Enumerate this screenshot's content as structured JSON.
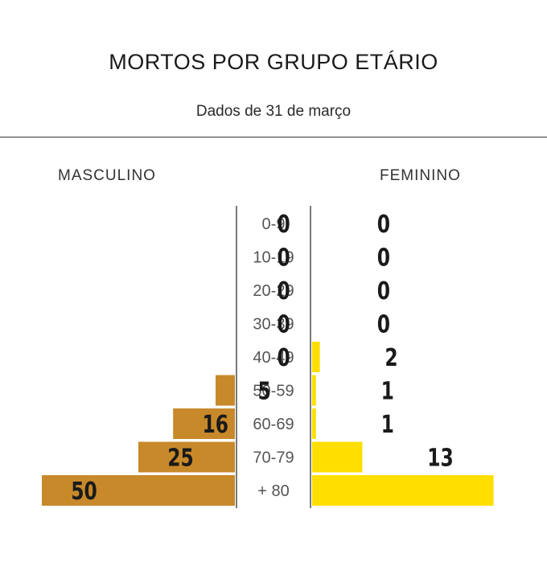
{
  "title": "MORTOS POR GRUPO ETÁRIO",
  "subtitle": "Dados de 31 de março",
  "left_label": "MASCULINO",
  "right_label": "FEMININO",
  "colors": {
    "male": "#C8892A",
    "female": "#FFDE00",
    "axis": "#333333",
    "text": "#1a1a1a"
  },
  "chart_data": {
    "type": "bar",
    "categories": [
      "0-9",
      "10-19",
      "20-29",
      "30-39",
      "40-49",
      "50-59",
      "60-69",
      "70-79",
      "+ 80"
    ],
    "series": [
      {
        "name": "MASCULINO",
        "values": [
          0,
          0,
          0,
          0,
          0,
          5,
          16,
          25,
          50
        ]
      },
      {
        "name": "FEMININO",
        "values": [
          0,
          0,
          0,
          0,
          2,
          1,
          1,
          13,
          47
        ]
      }
    ],
    "title": "MORTOS POR GRUPO ETÁRIO",
    "subtitle": "Dados de 31 de março",
    "orientation": "horizontal-population-pyramid",
    "grid": false,
    "legend": "top"
  }
}
